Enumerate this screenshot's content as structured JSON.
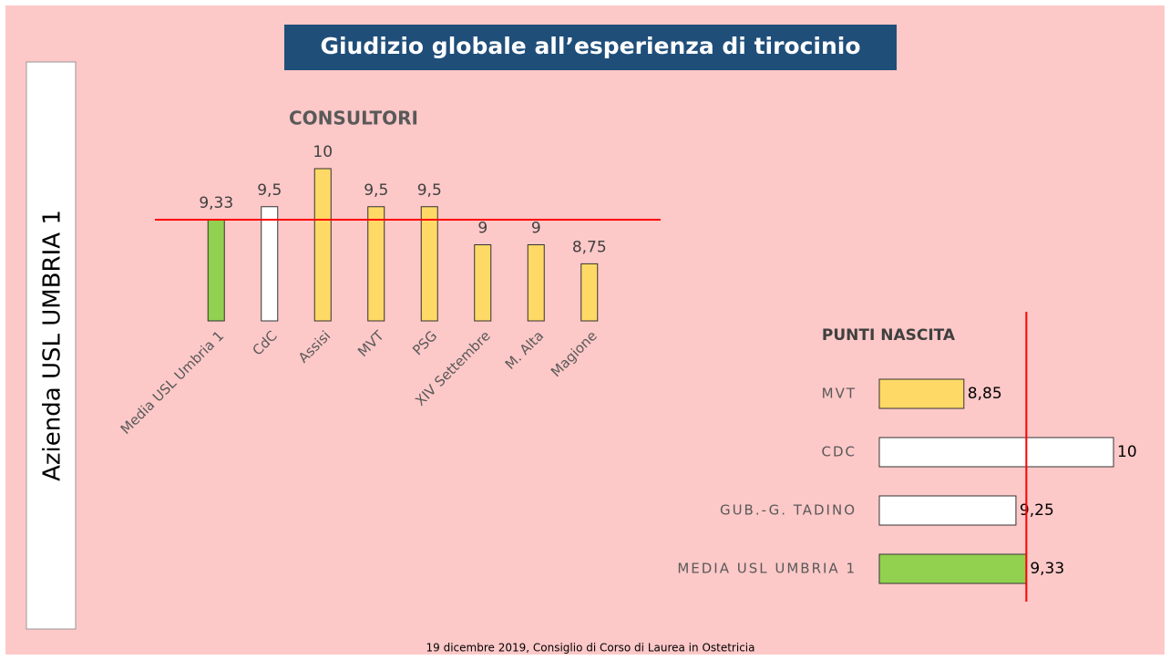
{
  "slide": {
    "title": "Giudizio globale all’esperienza di tirocinio",
    "side_label": "Azienda USL UMBRIA 1",
    "footer": "19 dicembre 2019, Consiglio di Corso di Laurea in Ostetricia"
  },
  "chart_data": [
    {
      "type": "bar",
      "title": "CONSULTORI",
      "categories": [
        "Media USL Umbria 1",
        "CdC",
        "Assisi",
        "MVT",
        "PSG",
        "XIV Settembre",
        "M. Alta",
        "Magione"
      ],
      "values": [
        9.33,
        9.5,
        10,
        9.5,
        9.5,
        9,
        9,
        8.75
      ],
      "value_labels": [
        "9,33",
        "9,5",
        "10",
        "9,5",
        "9,5",
        "9",
        "9",
        "8,75"
      ],
      "colors": [
        "#92d050",
        "#ffffff",
        "#ffd966",
        "#ffd966",
        "#ffd966",
        "#ffd966",
        "#ffd966",
        "#ffd966"
      ],
      "ylim": [
        8,
        10
      ],
      "reference_line": 9.33,
      "reference_color": "#ff0000"
    },
    {
      "type": "barh",
      "title": "PUNTI NASCITA",
      "categories": [
        "MVT",
        "CDC",
        "GUB.-G. TADINO",
        "MEDIA USL UMBRIA 1"
      ],
      "values": [
        8.85,
        10,
        9.25,
        9.33
      ],
      "value_labels": [
        "8,85",
        "10",
        "9,25",
        "9,33"
      ],
      "colors": [
        "#ffd966",
        "#ffffff",
        "#ffffff",
        "#92d050"
      ],
      "xlim": [
        8.2,
        10
      ],
      "reference_line": 9.33,
      "reference_color": "#ff0000"
    }
  ]
}
